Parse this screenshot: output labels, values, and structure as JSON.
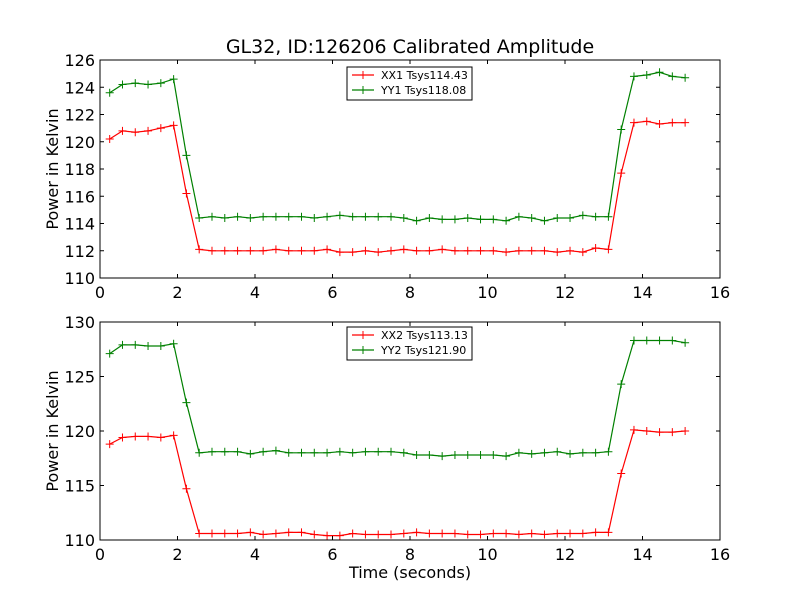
{
  "chart_data": [
    {
      "type": "line",
      "title": "GL32, ID:126206 Calibrated Amplitude",
      "xlabel": "",
      "ylabel": "Power in Kelvin",
      "xlim": [
        0,
        16
      ],
      "ylim": [
        110,
        126
      ],
      "xticks": [
        0,
        2,
        4,
        6,
        8,
        10,
        12,
        14,
        16
      ],
      "yticks": [
        110,
        112,
        114,
        116,
        118,
        120,
        122,
        124,
        126
      ],
      "grid": false,
      "legend_position": "top-center",
      "x": [
        0.25,
        0.58,
        0.91,
        1.24,
        1.57,
        1.9,
        2.23,
        2.56,
        2.89,
        3.22,
        3.55,
        3.88,
        4.21,
        4.54,
        4.87,
        5.2,
        5.53,
        5.86,
        6.19,
        6.52,
        6.85,
        7.18,
        7.51,
        7.84,
        8.17,
        8.5,
        8.83,
        9.16,
        9.49,
        9.82,
        10.15,
        10.48,
        10.81,
        11.14,
        11.47,
        11.8,
        12.13,
        12.46,
        12.79,
        13.12,
        13.45,
        13.78,
        14.11,
        14.44,
        14.77,
        15.1
      ],
      "series": [
        {
          "name": "XX1 Tsys114.43",
          "color": "#ff0000",
          "values": [
            120.2,
            120.8,
            120.7,
            120.8,
            121.0,
            121.2,
            116.2,
            112.1,
            112.0,
            112.0,
            112.0,
            112.0,
            112.0,
            112.1,
            112.0,
            112.0,
            112.0,
            112.1,
            111.9,
            111.9,
            112.0,
            111.9,
            112.0,
            112.1,
            112.0,
            112.0,
            112.1,
            112.0,
            112.0,
            112.0,
            112.0,
            111.9,
            112.0,
            112.0,
            112.0,
            111.9,
            112.0,
            111.9,
            112.2,
            112.1,
            117.7,
            121.4,
            121.5,
            121.3,
            121.4,
            121.4
          ]
        },
        {
          "name": "YY1 Tsys118.08",
          "color": "#008000",
          "values": [
            123.6,
            124.2,
            124.3,
            124.2,
            124.3,
            124.6,
            119.0,
            114.4,
            114.5,
            114.4,
            114.5,
            114.4,
            114.5,
            114.5,
            114.5,
            114.5,
            114.4,
            114.5,
            114.6,
            114.5,
            114.5,
            114.5,
            114.5,
            114.4,
            114.2,
            114.4,
            114.3,
            114.3,
            114.4,
            114.3,
            114.3,
            114.2,
            114.5,
            114.4,
            114.2,
            114.4,
            114.4,
            114.6,
            114.5,
            114.5,
            120.9,
            124.8,
            124.9,
            125.1,
            124.8,
            124.7
          ]
        }
      ]
    },
    {
      "type": "line",
      "title": "",
      "xlabel": "Time (seconds)",
      "ylabel": "Power in Kelvin",
      "xlim": [
        0,
        16
      ],
      "ylim": [
        110,
        130
      ],
      "xticks": [
        0,
        2,
        4,
        6,
        8,
        10,
        12,
        14,
        16
      ],
      "yticks": [
        110,
        115,
        120,
        125,
        130
      ],
      "grid": false,
      "legend_position": "top-center",
      "x": [
        0.25,
        0.58,
        0.91,
        1.24,
        1.57,
        1.9,
        2.23,
        2.56,
        2.89,
        3.22,
        3.55,
        3.88,
        4.21,
        4.54,
        4.87,
        5.2,
        5.53,
        5.86,
        6.19,
        6.52,
        6.85,
        7.18,
        7.51,
        7.84,
        8.17,
        8.5,
        8.83,
        9.16,
        9.49,
        9.82,
        10.15,
        10.48,
        10.81,
        11.14,
        11.47,
        11.8,
        12.13,
        12.46,
        12.79,
        13.12,
        13.45,
        13.78,
        14.11,
        14.44,
        14.77,
        15.1
      ],
      "series": [
        {
          "name": "XX2 Tsys113.13",
          "color": "#ff0000",
          "values": [
            118.8,
            119.4,
            119.5,
            119.5,
            119.4,
            119.6,
            114.7,
            110.6,
            110.6,
            110.6,
            110.6,
            110.7,
            110.5,
            110.6,
            110.7,
            110.7,
            110.5,
            110.4,
            110.4,
            110.6,
            110.5,
            110.5,
            110.5,
            110.6,
            110.7,
            110.6,
            110.6,
            110.6,
            110.5,
            110.5,
            110.6,
            110.6,
            110.5,
            110.6,
            110.5,
            110.6,
            110.6,
            110.6,
            110.7,
            110.7,
            116.1,
            120.1,
            120.0,
            119.9,
            119.9,
            120.0
          ]
        },
        {
          "name": "YY2 Tsys121.90",
          "color": "#008000",
          "values": [
            127.1,
            127.9,
            127.9,
            127.8,
            127.8,
            128.0,
            122.6,
            118.0,
            118.1,
            118.1,
            118.1,
            117.9,
            118.1,
            118.2,
            118.0,
            118.0,
            118.0,
            118.0,
            118.1,
            118.0,
            118.1,
            118.1,
            118.1,
            118.0,
            117.8,
            117.8,
            117.7,
            117.8,
            117.8,
            117.8,
            117.8,
            117.7,
            118.0,
            117.9,
            118.0,
            118.1,
            117.9,
            118.0,
            118.0,
            118.1,
            124.3,
            128.3,
            128.3,
            128.3,
            128.3,
            128.1
          ]
        }
      ]
    }
  ]
}
